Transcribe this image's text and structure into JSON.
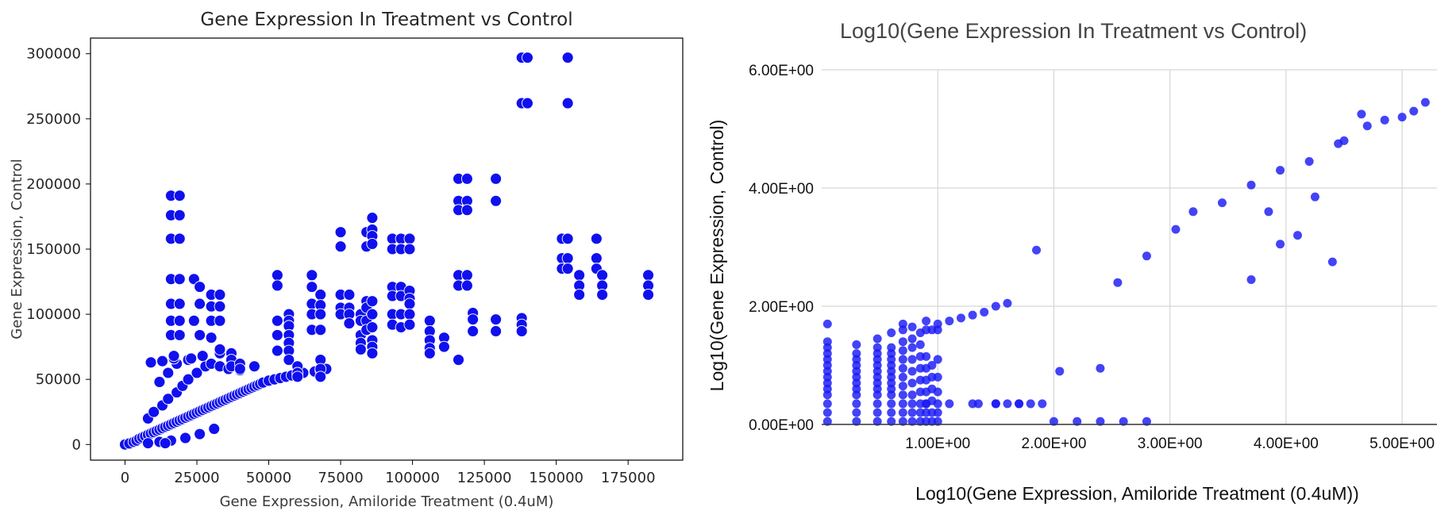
{
  "chart_data": [
    {
      "type": "scatter",
      "title": "Gene Expression In Treatment vs Control",
      "xlabel": "Gene Expression, Amiloride Treatment (0.4uM)",
      "ylabel": "Gene Expression, Control",
      "xlim": [
        -12000,
        194000
      ],
      "ylim": [
        -12000,
        312000
      ],
      "xticks": [
        0,
        25000,
        50000,
        75000,
        100000,
        125000,
        150000,
        175000
      ],
      "xtick_labels": [
        "0",
        "25000",
        "50000",
        "75000",
        "100000",
        "125000",
        "150000",
        "175000"
      ],
      "yticks": [
        0,
        50000,
        100000,
        150000,
        200000,
        250000,
        300000
      ],
      "ytick_labels": [
        "0",
        "50000",
        "100000",
        "150000",
        "200000",
        "250000",
        "300000"
      ],
      "grid": false,
      "color": "#1010ee",
      "x": [
        0,
        1500,
        3000,
        4000,
        5000,
        6000,
        7000,
        8000,
        9000,
        10000,
        11000,
        12000,
        13000,
        14000,
        15000,
        16000,
        17000,
        18000,
        19000,
        20000,
        21000,
        22000,
        23000,
        24000,
        25000,
        26000,
        27000,
        28000,
        29000,
        30000,
        31000,
        32000,
        33000,
        34000,
        35000,
        36000,
        37000,
        38000,
        39000,
        40000,
        41000,
        42000,
        43000,
        44000,
        45000,
        46000,
        47000,
        48000,
        50000,
        52000,
        54000,
        56000,
        58000,
        60000,
        62000,
        66000,
        68000,
        70000,
        8000,
        10000,
        13000,
        15000,
        18000,
        20000,
        22000,
        25000,
        28000,
        30000,
        33000,
        36000,
        40000,
        45000,
        8000,
        12000,
        16000,
        21000,
        26000,
        31000,
        12000,
        15000,
        18000,
        22000,
        27000,
        33000,
        9000,
        13000,
        17000,
        23000,
        14000,
        16000,
        16000,
        16000,
        16000,
        16000,
        16000,
        16000,
        19000,
        19000,
        19000,
        19000,
        19000,
        19000,
        19000,
        17000,
        24000,
        24000,
        26000,
        26000,
        26000,
        30000,
        30000,
        30000,
        30000,
        33000,
        33000,
        33000,
        33000,
        37000,
        37000,
        37000,
        40000,
        40000,
        53000,
        53000,
        53000,
        53000,
        53000,
        57000,
        57000,
        57000,
        57000,
        57000,
        57000,
        57000,
        60000,
        60000,
        60000,
        65000,
        65000,
        65000,
        65000,
        65000,
        68000,
        68000,
        68000,
        68000,
        68000,
        68000,
        68000,
        75000,
        75000,
        75000,
        75000,
        75000,
        78000,
        78000,
        78000,
        78000,
        82000,
        82000,
        82000,
        82000,
        82000,
        84000,
        84000,
        84000,
        84000,
        84000,
        84000,
        86000,
        86000,
        86000,
        86000,
        86000,
        86000,
        86000,
        86000,
        86000,
        86000,
        93000,
        93000,
        93000,
        93000,
        93000,
        93000,
        96000,
        96000,
        96000,
        96000,
        96000,
        96000,
        99000,
        99000,
        99000,
        99000,
        99000,
        99000,
        99000,
        106000,
        106000,
        106000,
        106000,
        106000,
        111000,
        111000,
        116000,
        116000,
        116000,
        116000,
        116000,
        116000,
        119000,
        119000,
        119000,
        119000,
        119000,
        121000,
        121000,
        121000,
        129000,
        129000,
        129000,
        129000,
        138000,
        138000,
        138000,
        138000,
        138000,
        140000,
        140000,
        152000,
        152000,
        152000,
        154000,
        154000,
        154000,
        154000,
        154000,
        158000,
        158000,
        158000,
        164000,
        164000,
        164000,
        166000,
        166000,
        166000,
        182000,
        182000,
        182000
      ],
      "y": [
        0,
        800,
        2000,
        3000,
        4500,
        5500,
        6500,
        7500,
        8500,
        9500,
        10500,
        11500,
        12500,
        13500,
        14500,
        15500,
        16500,
        17500,
        18500,
        19500,
        20500,
        21500,
        22500,
        23500,
        24500,
        25500,
        26500,
        27500,
        28500,
        29500,
        30500,
        31500,
        32500,
        33500,
        34500,
        35500,
        36500,
        37500,
        38500,
        39500,
        40500,
        41500,
        42500,
        43500,
        44500,
        45500,
        46500,
        47500,
        49000,
        50000,
        51000,
        52000,
        53000,
        54000,
        55000,
        56000,
        57000,
        58000,
        20000,
        25000,
        30000,
        35000,
        40000,
        45000,
        50000,
        55000,
        60000,
        62000,
        60000,
        58000,
        57000,
        60000,
        1000,
        2000,
        3000,
        5000,
        8000,
        12000,
        48000,
        55000,
        62000,
        65000,
        68000,
        70000,
        63000,
        64000,
        66000,
        66000,
        1000,
        191000,
        176000,
        158000,
        127000,
        108000,
        95000,
        84000,
        191000,
        176000,
        158000,
        127000,
        108000,
        95000,
        84000,
        68000,
        127000,
        95000,
        121000,
        108000,
        84000,
        115000,
        106000,
        95000,
        82000,
        115000,
        106000,
        95000,
        73000,
        70000,
        65000,
        60000,
        62000,
        58000,
        130000,
        122000,
        95000,
        84000,
        72000,
        100000,
        95000,
        91000,
        84000,
        78000,
        72000,
        65000,
        60000,
        55000,
        52000,
        130000,
        121000,
        108000,
        100000,
        88000,
        115000,
        107000,
        100000,
        88000,
        65000,
        58000,
        52000,
        163000,
        152000,
        115000,
        105000,
        100000,
        115000,
        105000,
        100000,
        93000,
        100000,
        95000,
        84000,
        78000,
        73000,
        163000,
        152000,
        110000,
        105000,
        95000,
        88000,
        174000,
        165000,
        160000,
        154000,
        110000,
        100000,
        90000,
        80000,
        75000,
        70000,
        158000,
        150000,
        121000,
        114000,
        100000,
        92000,
        158000,
        150000,
        121000,
        114000,
        100000,
        90000,
        158000,
        150000,
        118000,
        112000,
        108000,
        100000,
        92000,
        95000,
        87000,
        80000,
        74000,
        70000,
        82000,
        75000,
        204000,
        187000,
        180000,
        130000,
        122000,
        65000,
        204000,
        187000,
        180000,
        130000,
        122000,
        101000,
        96000,
        87000,
        204000,
        187000,
        96000,
        87000,
        297000,
        262000,
        97000,
        92000,
        87000,
        297000,
        262000,
        158000,
        143000,
        135000,
        297000,
        262000,
        158000,
        143000,
        135000,
        130000,
        122000,
        115000,
        158000,
        143000,
        135000,
        130000,
        122000,
        115000,
        130000,
        122000,
        115000
      ]
    },
    {
      "type": "scatter",
      "title": "Log10(Gene Expression In Treatment vs Control)",
      "xlabel": "Log10(Gene Expression, Amiloride Treatment (0.4uM))",
      "ylabel": "Log10(Gene Expression, Control)",
      "xlim": [
        0,
        5.3
      ],
      "ylim": [
        0,
        6
      ],
      "xticks": [
        1,
        2,
        3,
        4,
        5
      ],
      "xtick_labels": [
        "1.00E+00",
        "2.00E+00",
        "3.00E+00",
        "4.00E+00",
        "5.00E+00"
      ],
      "yticks": [
        0,
        2,
        4,
        6
      ],
      "ytick_labels": [
        "0.00E+00",
        "2.00E+00",
        "4.00E+00",
        "6.00E+00"
      ],
      "grid": true,
      "color": "#1a1af5",
      "x": [
        0.05,
        0.05,
        0.05,
        0.05,
        0.05,
        0.05,
        0.05,
        0.05,
        0.05,
        0.05,
        0.05,
        0.05,
        0.05,
        0.05,
        0.3,
        0.3,
        0.3,
        0.3,
        0.3,
        0.3,
        0.3,
        0.3,
        0.3,
        0.3,
        0.3,
        0.3,
        0.48,
        0.48,
        0.48,
        0.48,
        0.48,
        0.48,
        0.48,
        0.48,
        0.48,
        0.48,
        0.48,
        0.48,
        0.48,
        0.6,
        0.6,
        0.6,
        0.6,
        0.6,
        0.6,
        0.6,
        0.6,
        0.6,
        0.6,
        0.6,
        0.6,
        0.6,
        0.7,
        0.7,
        0.7,
        0.7,
        0.7,
        0.7,
        0.7,
        0.7,
        0.7,
        0.7,
        0.7,
        0.78,
        0.78,
        0.78,
        0.78,
        0.78,
        0.78,
        0.78,
        0.78,
        0.78,
        0.78,
        0.85,
        0.85,
        0.85,
        0.85,
        0.85,
        0.85,
        0.85,
        0.85,
        0.85,
        0.9,
        0.9,
        0.9,
        0.9,
        0.9,
        0.9,
        0.9,
        0.9,
        0.95,
        0.95,
        0.95,
        0.95,
        0.95,
        0.95,
        0.95,
        1.0,
        1.0,
        1.0,
        1.0,
        1.0,
        1.0,
        1.0,
        0.7,
        0.9,
        1.0,
        1.1,
        1.2,
        1.3,
        1.4,
        1.5,
        1.6,
        0.9,
        1.1,
        1.3,
        1.5,
        1.7,
        1.9,
        1.85,
        2.05,
        2.4,
        2.55,
        2.8,
        3.05,
        3.2,
        3.45,
        3.7,
        3.95,
        4.2,
        4.45,
        4.7,
        4.85,
        5.0,
        5.1,
        5.2,
        4.5,
        4.65,
        4.4,
        3.7,
        3.95,
        4.1,
        4.25,
        3.85,
        1.35,
        1.5,
        1.6,
        1.7,
        1.8,
        2.0,
        2.2,
        2.4,
        2.6,
        2.8
      ],
      "y": [
        0.05,
        0.2,
        0.35,
        0.5,
        0.6,
        0.7,
        0.8,
        0.9,
        1.0,
        1.1,
        1.2,
        1.3,
        1.4,
        1.7,
        0.05,
        0.2,
        0.35,
        0.5,
        0.6,
        0.7,
        0.8,
        0.9,
        1.0,
        1.1,
        1.2,
        1.35,
        0.05,
        0.2,
        0.35,
        0.5,
        0.6,
        0.7,
        0.8,
        0.9,
        1.0,
        1.1,
        1.2,
        1.3,
        1.45,
        0.05,
        0.2,
        0.35,
        0.5,
        0.6,
        0.7,
        0.8,
        0.9,
        1.0,
        1.1,
        1.2,
        1.3,
        1.55,
        0.05,
        0.2,
        0.35,
        0.5,
        0.65,
        0.8,
        0.95,
        1.1,
        1.25,
        1.4,
        1.6,
        0.05,
        0.2,
        0.35,
        0.5,
        0.7,
        0.9,
        1.1,
        1.3,
        1.45,
        1.65,
        0.05,
        0.2,
        0.35,
        0.55,
        0.75,
        0.95,
        1.15,
        1.35,
        1.55,
        0.05,
        0.2,
        0.35,
        0.55,
        0.75,
        0.95,
        1.15,
        1.6,
        0.05,
        0.2,
        0.4,
        0.6,
        0.8,
        1.0,
        1.6,
        0.05,
        0.2,
        0.35,
        0.55,
        0.8,
        1.1,
        1.6,
        1.7,
        1.75,
        1.7,
        1.75,
        1.8,
        1.85,
        1.9,
        2.0,
        2.05,
        0.35,
        0.35,
        0.35,
        0.35,
        0.35,
        0.35,
        2.95,
        0.9,
        0.95,
        2.4,
        2.85,
        3.3,
        3.6,
        3.75,
        4.05,
        4.3,
        4.45,
        4.75,
        5.05,
        5.15,
        5.2,
        5.3,
        5.45,
        4.8,
        5.25,
        2.75,
        2.45,
        3.05,
        3.2,
        3.85,
        3.6,
        0.35,
        0.35,
        0.35,
        0.35,
        0.35,
        0.05,
        0.05,
        0.05,
        0.05,
        0.05
      ]
    }
  ]
}
